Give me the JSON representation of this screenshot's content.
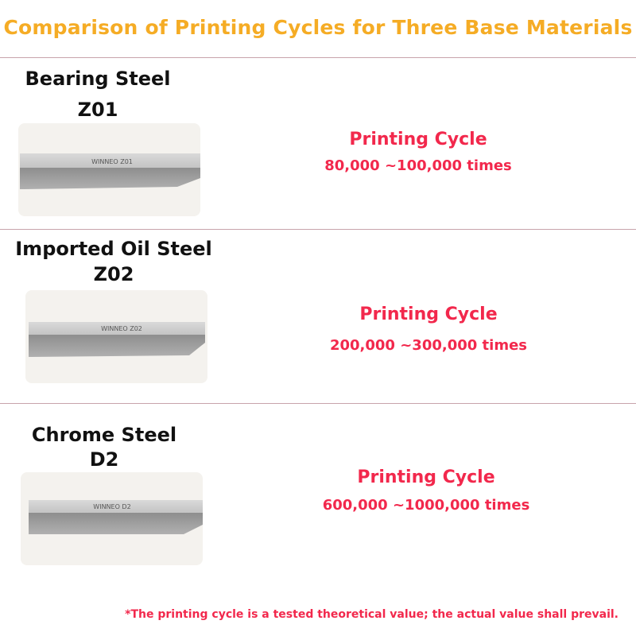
{
  "title": "Comparison of Printing Cycles for Three Base Materials",
  "colors": {
    "title": "#f5ac25",
    "accent": "#f2284c",
    "divider": "#c8a3ab"
  },
  "materials": [
    {
      "name": "Bearing Steel",
      "code": "Z01",
      "engraving": "WINNEO  Z01",
      "cycle_label": "Printing Cycle",
      "cycle_value": "80,000 ~100,000 times"
    },
    {
      "name": "Imported Oil Steel",
      "code": "Z02",
      "engraving": "WINNEO  Z02",
      "cycle_label": "Printing Cycle",
      "cycle_value": "200,000 ~300,000 times"
    },
    {
      "name": "Chrome Steel",
      "code": "D2",
      "engraving": "WINNEO  D2",
      "cycle_label": "Printing Cycle",
      "cycle_value": "600,000 ~1000,000 times"
    }
  ],
  "footnote": "*The printing cycle is a tested theoretical value; the actual value shall prevail."
}
